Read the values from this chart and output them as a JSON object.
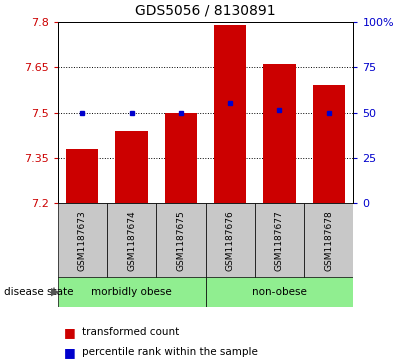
{
  "title": "GDS5056 / 8130891",
  "samples": [
    "GSM1187673",
    "GSM1187674",
    "GSM1187675",
    "GSM1187676",
    "GSM1187677",
    "GSM1187678"
  ],
  "red_values": [
    7.38,
    7.44,
    7.5,
    7.79,
    7.66,
    7.59
  ],
  "blue_values": [
    7.497,
    7.497,
    7.497,
    7.533,
    7.508,
    7.497
  ],
  "ymin": 7.2,
  "ymax": 7.8,
  "yticks_left": [
    7.2,
    7.35,
    7.5,
    7.65,
    7.8
  ],
  "yticks_right": [
    0,
    25,
    50,
    75,
    100
  ],
  "group_defs": [
    {
      "indices": [
        0,
        1,
        2
      ],
      "label": "morbidly obese",
      "color": "#90EE90"
    },
    {
      "indices": [
        3,
        4,
        5
      ],
      "label": "non-obese",
      "color": "#90EE90"
    }
  ],
  "disease_state_label": "disease state",
  "legend_red": "transformed count",
  "legend_blue": "percentile rank within the sample",
  "bar_color": "#CC0000",
  "dot_color": "#0000CC",
  "bar_bottom": 7.2,
  "bar_width": 0.65,
  "xticklabel_bg": "#c8c8c8"
}
